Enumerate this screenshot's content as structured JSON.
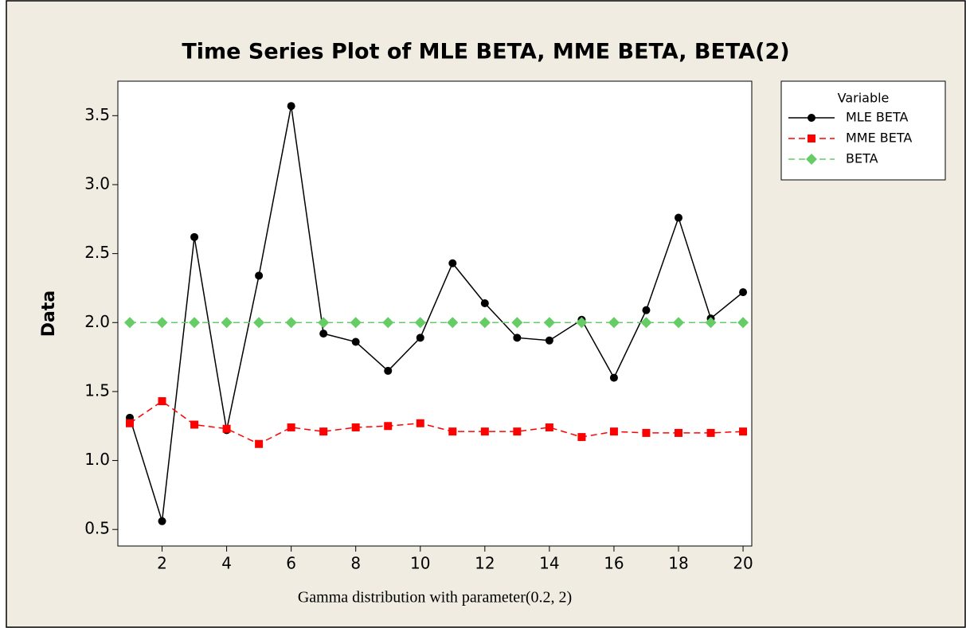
{
  "chart_data": {
    "type": "line",
    "title": "Time Series Plot of MLE BETA, MME BETA, BETA(2)",
    "x_label": "Gamma distribution with parameter(0.2, 2)",
    "y_label": "Data",
    "legend_title": "Variable",
    "legend": "outside-right",
    "x": [
      1,
      2,
      3,
      4,
      5,
      6,
      7,
      8,
      9,
      10,
      11,
      12,
      13,
      14,
      15,
      16,
      17,
      18,
      19,
      20
    ],
    "series": [
      {
        "name": "MLE BETA",
        "color": "#000000",
        "line_style": "solid",
        "marker": "circle",
        "values": [
          1.31,
          0.56,
          2.62,
          1.22,
          2.34,
          3.57,
          1.92,
          1.86,
          1.65,
          1.89,
          2.43,
          2.14,
          1.89,
          1.87,
          2.02,
          1.6,
          2.09,
          2.76,
          2.03,
          2.22
        ]
      },
      {
        "name": "MME BETA",
        "color": "#ff0000",
        "line_style": "dashed",
        "marker": "square",
        "values": [
          1.27,
          1.43,
          1.26,
          1.23,
          1.12,
          1.24,
          1.21,
          1.24,
          1.25,
          1.27,
          1.21,
          1.21,
          1.21,
          1.24,
          1.17,
          1.21,
          1.2,
          1.2,
          1.2,
          1.21
        ]
      },
      {
        "name": "BETA",
        "color": "#66cc66",
        "line_style": "dashed",
        "marker": "diamond",
        "values": [
          2,
          2,
          2,
          2,
          2,
          2,
          2,
          2,
          2,
          2,
          2,
          2,
          2,
          2,
          2,
          2,
          2,
          2,
          2,
          2
        ]
      }
    ],
    "xlim": [
      0.63,
      20.27
    ],
    "xticks": [
      2,
      4,
      6,
      8,
      10,
      12,
      14,
      16,
      18,
      20
    ],
    "ylim": [
      0.38,
      3.75
    ],
    "yticks": [
      0.5,
      1.0,
      1.5,
      2.0,
      2.5,
      3.0,
      3.5
    ]
  }
}
